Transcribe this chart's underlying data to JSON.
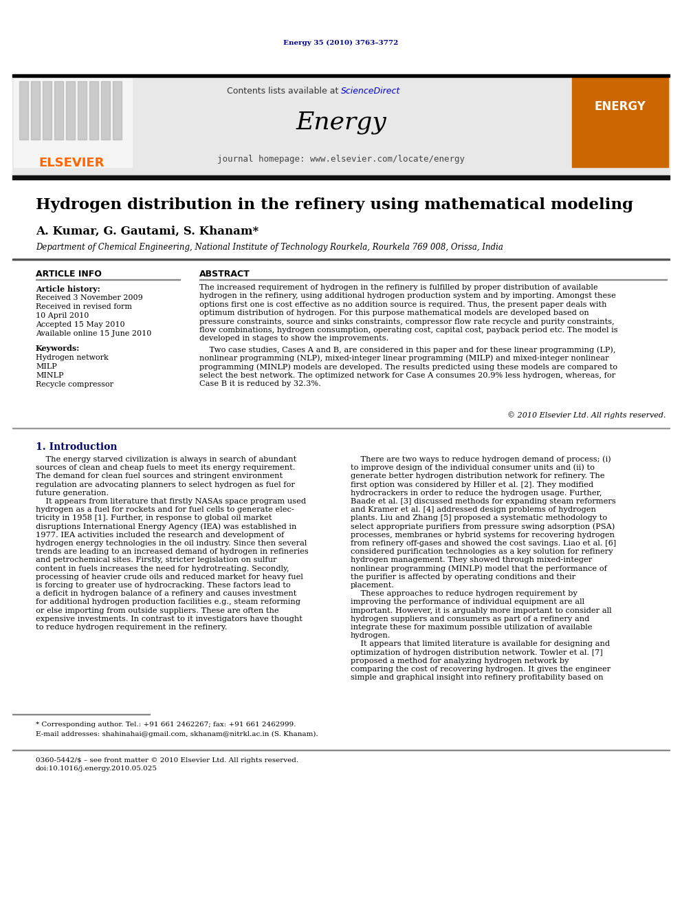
{
  "page_bg": "#ffffff",
  "top_journal_ref": "Energy 35 (2010) 3763–3772",
  "top_journal_color": "#00008B",
  "header_bg": "#e8e8e8",
  "elsevier_color": "#FF6600",
  "sciencedirect_color": "#0000CC",
  "journal_name": "Energy",
  "journal_url": "journal homepage: www.elsevier.com/locate/energy",
  "title": "Hydrogen distribution in the refinery using mathematical modeling",
  "authors": "A. Kumar, G. Gautami, S. Khanam*",
  "affiliation": "Department of Chemical Engineering, National Institute of Technology Rourkela, Rourkela 769 008, Orissa, India",
  "article_info_header": "ARTICLE INFO",
  "abstract_header": "ABSTRACT",
  "article_history_label": "Article history:",
  "received_1": "Received 3 November 2009",
  "received_revised": "Received in revised form",
  "received_revised_date": "10 April 2010",
  "accepted": "Accepted 15 May 2010",
  "available": "Available online 15 June 2010",
  "keywords_label": "Keywords:",
  "keywords": [
    "Hydrogen network",
    "MILP",
    "MINLP",
    "Recycle compressor"
  ],
  "copyright": "© 2010 Elsevier Ltd. All rights reserved.",
  "section1_header": "1. Introduction",
  "footnote_corresponding": "* Corresponding author. Tel.: +91 661 2462267; fax: +91 661 2462999.",
  "footnote_email": "E-mail addresses: shahinahai@gmail.com, skhanam@nitrkl.ac.in (S. Khanam).",
  "footer_left": "0360-5442/$ – see front matter © 2010 Elsevier Ltd. All rights reserved.",
  "footer_doi": "doi:10.1016/j.energy.2010.05.025",
  "abstract_lines_p1": [
    "The increased requirement of hydrogen in the refinery is fulfilled by proper distribution of available",
    "hydrogen in the refinery, using additional hydrogen production system and by importing. Amongst these",
    "options first one is cost effective as no addition source is required. Thus, the present paper deals with",
    "optimum distribution of hydrogen. For this purpose mathematical models are developed based on",
    "pressure constraints, source and sinks constraints, compressor flow rate recycle and purity constraints,",
    "flow combinations, hydrogen consumption, operating cost, capital cost, payback period etc. The model is",
    "developed in stages to show the improvements."
  ],
  "abstract_lines_p2": [
    "    Two case studies, Cases A and B, are considered in this paper and for these linear programming (LP),",
    "nonlinear programming (NLP), mixed-integer linear programming (MILP) and mixed-integer nonlinear",
    "programming (MINLP) models are developed. The results predicted using these models are compared to",
    "select the best network. The optimized network for Case A consumes 20.9% less hydrogen, whereas, for",
    "Case B it is reduced by 32.3%."
  ],
  "left_col_lines": [
    "    The energy starved civilization is always in search of abundant",
    "sources of clean and cheap fuels to meet its energy requirement.",
    "The demand for clean fuel sources and stringent environment",
    "regulation are advocating planners to select hydrogen as fuel for",
    "future generation.",
    "    It appears from literature that firstly NASAs space program used",
    "hydrogen as a fuel for rockets and for fuel cells to generate elec-",
    "tricity in 1958 [1]. Further, in response to global oil market",
    "disruptions International Energy Agency (IEA) was established in",
    "1977. IEA activities included the research and development of",
    "hydrogen energy technologies in the oil industry. Since then several",
    "trends are leading to an increased demand of hydrogen in refineries",
    "and petrochemical sites. Firstly, stricter legislation on sulfur",
    "content in fuels increases the need for hydrotreating. Secondly,",
    "processing of heavier crude oils and reduced market for heavy fuel",
    "is forcing to greater use of hydrocracking. These factors lead to",
    "a deficit in hydrogen balance of a refinery and causes investment",
    "for additional hydrogen production facilities e.g., steam reforming",
    "or else importing from outside suppliers. These are often the",
    "expensive investments. In contrast to it investigators have thought",
    "to reduce hydrogen requirement in the refinery."
  ],
  "right_col_lines": [
    "    There are two ways to reduce hydrogen demand of process; (i)",
    "to improve design of the individual consumer units and (ii) to",
    "generate better hydrogen distribution network for refinery. The",
    "first option was considered by Hiller et al. [2]. They modified",
    "hydrocrackers in order to reduce the hydrogen usage. Further,",
    "Baade et al. [3] discussed methods for expanding steam reformers",
    "and Kramer et al. [4] addressed design problems of hydrogen",
    "plants. Liu and Zhang [5] proposed a systematic methodology to",
    "select appropriate purifiers from pressure swing adsorption (PSA)",
    "processes, membranes or hybrid systems for recovering hydrogen",
    "from refinery off-gases and showed the cost savings. Liao et al. [6]",
    "considered purification technologies as a key solution for refinery",
    "hydrogen management. They showed through mixed-integer",
    "nonlinear programming (MINLP) model that the performance of",
    "the purifier is affected by operating conditions and their",
    "placement.",
    "    These approaches to reduce hydrogen requirement by",
    "improving the performance of individual equipment are all",
    "important. However, it is arguably more important to consider all",
    "hydrogen suppliers and consumers as part of a refinery and",
    "integrate these for maximum possible utilization of available",
    "hydrogen.",
    "    It appears that limited literature is available for designing and",
    "optimization of hydrogen distribution network. Towler et al. [7]",
    "proposed a method for analyzing hydrogen network by",
    "comparing the cost of recovering hydrogen. It gives the engineer",
    "simple and graphical insight into refinery profitability based on"
  ]
}
